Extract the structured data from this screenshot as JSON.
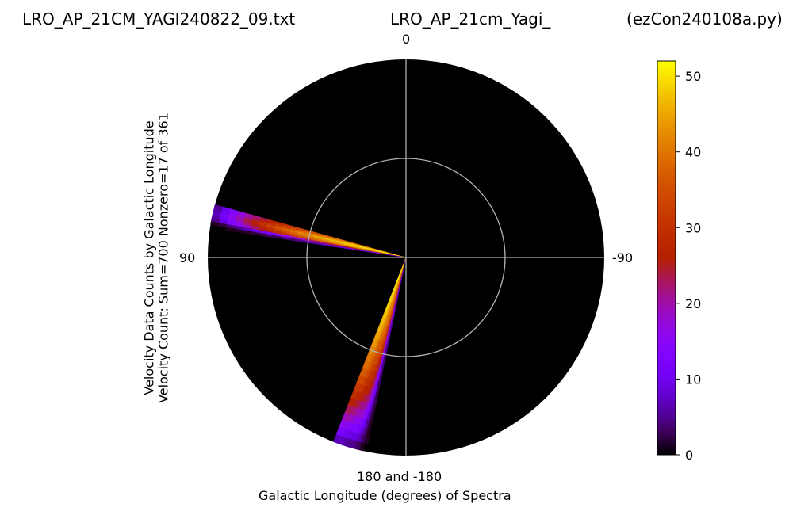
{
  "titles": {
    "left": "LRO_AP_21CM_YAGI240822_09.txt",
    "center": "LRO_AP_21cm_Yagi_",
    "right": "(ezCon240108a.py)"
  },
  "axes": {
    "ylabel_line1": "Velocity Data Counts by Galactic Longitude",
    "ylabel_line2": "Velocity Count: Sum=700 Nonzero=17 of 361",
    "xlabel": "Galactic Longitude (degrees) of Spectra",
    "angle_labels": {
      "top": "0",
      "left": "90",
      "right": "-90",
      "bottom": "180 and -180"
    }
  },
  "colorbar": {
    "ticks": [
      "0",
      "10",
      "20",
      "30",
      "40",
      "50"
    ],
    "min": 0,
    "max": 52,
    "colormap": "gnuplot"
  },
  "chart_data": {
    "type": "polar-heatmap",
    "theta_zero": "top",
    "theta_direction": "counterclockwise",
    "theta_unit": "degrees galactic longitude",
    "radial_max": 52,
    "background": "#000000",
    "grid": true,
    "wedges": [
      {
        "longitude": 75,
        "counts": [
          42,
          42,
          42,
          42,
          41,
          41,
          40,
          40,
          39,
          38,
          37,
          36,
          35,
          33,
          32,
          30,
          28,
          26,
          24,
          22,
          20,
          17,
          14,
          10,
          5
        ]
      },
      {
        "longitude": 76,
        "counts": [
          48,
          48,
          48,
          47,
          47,
          46,
          46,
          45,
          44,
          43,
          42,
          41,
          40,
          38,
          36,
          34,
          32,
          30,
          27,
          24,
          21,
          18,
          14,
          10,
          6
        ]
      },
      {
        "longitude": 77,
        "counts": [
          51,
          51,
          51,
          51,
          50,
          50,
          49,
          49,
          48,
          47,
          46,
          45,
          43,
          42,
          40,
          38,
          36,
          33,
          30,
          27,
          24,
          20,
          16,
          12,
          7
        ]
      },
      {
        "longitude": 78,
        "counts": [
          49,
          49,
          49,
          48,
          48,
          47,
          47,
          46,
          45,
          44,
          43,
          42,
          40,
          39,
          37,
          35,
          33,
          30,
          28,
          25,
          22,
          18,
          15,
          11,
          6
        ]
      },
      {
        "longitude": 79,
        "counts": [
          45,
          45,
          45,
          44,
          44,
          43,
          43,
          42,
          41,
          40,
          39,
          38,
          37,
          35,
          33,
          31,
          29,
          27,
          25,
          22,
          19,
          16,
          13,
          9,
          5
        ]
      },
      {
        "longitude": 80,
        "counts": [
          30,
          30,
          29,
          29,
          28,
          27,
          27,
          26,
          25,
          24,
          23,
          22,
          21,
          19,
          18,
          16,
          14,
          12,
          10,
          9,
          7,
          5,
          4,
          2,
          1
        ]
      },
      {
        "longitude": 81,
        "counts": [
          12,
          12,
          11,
          11,
          10,
          10,
          9,
          9,
          8,
          8,
          7,
          6,
          6,
          5,
          4,
          4,
          3,
          3,
          2,
          2,
          1,
          1,
          1,
          0,
          0
        ]
      },
      {
        "longitude": 159,
        "counts": [
          50,
          50,
          50,
          50,
          49,
          49,
          48,
          47,
          46,
          45,
          44,
          43,
          41,
          40,
          38,
          36,
          34,
          31,
          29,
          26,
          23,
          19,
          16,
          12,
          7
        ]
      },
      {
        "longitude": 160,
        "counts": [
          52,
          52,
          52,
          51,
          51,
          50,
          50,
          49,
          48,
          47,
          46,
          44,
          43,
          41,
          39,
          37,
          35,
          32,
          29,
          26,
          23,
          20,
          16,
          12,
          7
        ]
      },
      {
        "longitude": 161,
        "counts": [
          50,
          50,
          50,
          49,
          49,
          48,
          48,
          47,
          46,
          45,
          44,
          43,
          41,
          39,
          38,
          36,
          33,
          31,
          28,
          25,
          22,
          19,
          15,
          11,
          7
        ]
      },
      {
        "longitude": 162,
        "counts": [
          48,
          48,
          48,
          47,
          47,
          46,
          45,
          45,
          44,
          43,
          42,
          40,
          39,
          37,
          36,
          34,
          32,
          29,
          27,
          24,
          21,
          18,
          14,
          10,
          6
        ]
      },
      {
        "longitude": 163,
        "counts": [
          45,
          45,
          44,
          44,
          43,
          43,
          42,
          41,
          41,
          40,
          39,
          37,
          36,
          35,
          33,
          31,
          29,
          27,
          25,
          22,
          19,
          16,
          13,
          9,
          5
        ]
      },
      {
        "longitude": 164,
        "counts": [
          44,
          44,
          43,
          43,
          42,
          42,
          41,
          40,
          40,
          39,
          38,
          36,
          35,
          34,
          32,
          30,
          28,
          26,
          24,
          21,
          19,
          16,
          13,
          9,
          5
        ]
      },
      {
        "longitude": 165,
        "counts": [
          41,
          41,
          41,
          40,
          40,
          39,
          39,
          38,
          37,
          36,
          35,
          34,
          33,
          31,
          30,
          28,
          26,
          24,
          22,
          20,
          17,
          14,
          11,
          8,
          4
        ]
      },
      {
        "longitude": 166,
        "counts": [
          35,
          35,
          34,
          34,
          33,
          33,
          32,
          32,
          31,
          30,
          29,
          28,
          27,
          26,
          24,
          23,
          21,
          19,
          17,
          15,
          13,
          11,
          8,
          6,
          3
        ]
      },
      {
        "longitude": 167,
        "counts": [
          22,
          22,
          22,
          21,
          21,
          21,
          20,
          20,
          19,
          19,
          18,
          17,
          16,
          15,
          14,
          13,
          12,
          11,
          10,
          8,
          7,
          5,
          4,
          3,
          1
        ]
      },
      {
        "longitude": 168,
        "counts": [
          8,
          8,
          8,
          8,
          7,
          7,
          7,
          7,
          6,
          6,
          6,
          5,
          5,
          5,
          4,
          4,
          3,
          3,
          3,
          2,
          2,
          1,
          1,
          1,
          0
        ]
      }
    ]
  }
}
